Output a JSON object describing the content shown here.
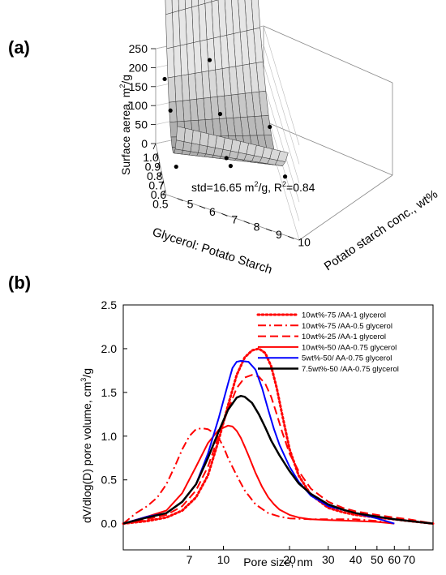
{
  "panel_a": {
    "label": "(a)",
    "annotation_pre": "std=16.65 m",
    "annotation_sup": "2",
    "annotation_post": "/g, R",
    "annotation_sup2": "2",
    "annotation_end": "=0.84",
    "zlabel_pre": "Surface aerea, m",
    "zlabel_sup": "2",
    "zlabel_post": "/g",
    "xlabel": "Glycerol: Potato Starch",
    "ylabel": "Potato starch conc., wt%"
  },
  "panel_b": {
    "label": "(b)",
    "ylabel_pre": "dV/dlog(D) pore volume, cm",
    "ylabel_sup": "3",
    "ylabel_post": "/g",
    "xlabel": "Pore size, nm"
  },
  "chart_data": [
    {
      "type": "surface3d",
      "zlim": [
        0,
        250
      ],
      "z_ticks": [
        "0",
        "50",
        "100",
        "150",
        "200",
        "250"
      ],
      "x_ticks": [
        "1.0",
        "0.9",
        "0.8",
        "0.7",
        "0.6",
        "0.5"
      ],
      "x_range": [
        1.0,
        0.45
      ],
      "y_ticks": [
        "5",
        "6",
        "7",
        "8",
        "9",
        "10"
      ],
      "y_range": [
        4.5,
        10.5
      ],
      "surface_fit": "z = 85 + 30*(6.5 - 10*glycerol)^2 + 6*(conc - 7.5)",
      "points": [
        {
          "glycerol": 1.0,
          "conc": 7.5,
          "z": 190
        },
        {
          "glycerol": 1.0,
          "conc": 5.0,
          "z": 165
        },
        {
          "glycerol": 0.75,
          "conc": 5.0,
          "z": 150
        },
        {
          "glycerol": 0.75,
          "conc": 7.5,
          "z": 150
        },
        {
          "glycerol": 0.75,
          "conc": 10.0,
          "z": 125
        },
        {
          "glycerol": 0.5,
          "conc": 7.5,
          "z": 115
        },
        {
          "glycerol": 0.5,
          "conc": 10.0,
          "z": 130
        },
        {
          "glycerol": 0.5,
          "conc": 5.0,
          "z": 70
        },
        {
          "glycerol": 0.6,
          "conc": 7.5,
          "z": 95
        }
      ]
    },
    {
      "type": "line",
      "xscale": "log",
      "xlim": [
        3.5,
        90
      ],
      "ylim": [
        -0.3,
        2.5
      ],
      "x_ticks": [
        7,
        10,
        20,
        30,
        40,
        50,
        60,
        70
      ],
      "y_ticks": [
        "0.0",
        "0.5",
        "1.0",
        "1.5",
        "2.0",
        "2.5"
      ],
      "y_tick_values": [
        0,
        0.5,
        1.0,
        1.5,
        2.0,
        2.5
      ],
      "legend_position": "top-right",
      "series": [
        {
          "name": "10wt%-75 /AA-1 glycerol",
          "color": "#ff0000",
          "dash": "dotted",
          "width": 3,
          "x": [
            3.5,
            4.5,
            5.5,
            6.5,
            7.5,
            8.5,
            9.5,
            10.5,
            11.5,
            12.5,
            13.5,
            14.5,
            15.5,
            16.5,
            17.5,
            18.5,
            20,
            22,
            25,
            30,
            35,
            40,
            50,
            60,
            70,
            90
          ],
          "y": [
            0.0,
            0.03,
            0.07,
            0.15,
            0.3,
            0.55,
            0.95,
            1.35,
            1.7,
            1.9,
            1.98,
            2.0,
            1.95,
            1.8,
            1.55,
            1.25,
            0.85,
            0.55,
            0.33,
            0.18,
            0.13,
            0.1,
            0.07,
            0.05,
            0.03,
            0.0
          ]
        },
        {
          "name": "10wt%-75 /AA-0.5 glycerol",
          "color": "#ff0000",
          "dash": "dashdot",
          "width": 2,
          "x": [
            3.5,
            4.0,
            4.5,
            5.0,
            5.5,
            6.0,
            6.5,
            7.0,
            7.5,
            8.0,
            8.5,
            9.0,
            9.5,
            10.0,
            10.5,
            11.5,
            12.5,
            14,
            16,
            18,
            20,
            25,
            30,
            40,
            50,
            60
          ],
          "y": [
            0.0,
            0.12,
            0.2,
            0.3,
            0.45,
            0.65,
            0.85,
            1.0,
            1.08,
            1.09,
            1.08,
            1.04,
            0.98,
            0.88,
            0.75,
            0.55,
            0.38,
            0.22,
            0.12,
            0.08,
            0.06,
            0.05,
            0.05,
            0.05,
            0.03,
            0.0
          ]
        },
        {
          "name": "10wt%-25 /AA-1 glycerol",
          "color": "#ff0000",
          "dash": "dashed",
          "width": 2,
          "x": [
            3.5,
            4.5,
            5.5,
            6.5,
            7.5,
            8.5,
            9.5,
            10.5,
            11.5,
            12.5,
            13.5,
            14.5,
            15.5,
            16.5,
            17.5,
            18.5,
            20,
            22,
            25,
            30,
            35,
            40,
            50,
            60,
            70,
            90
          ],
          "y": [
            0.0,
            0.05,
            0.1,
            0.2,
            0.38,
            0.65,
            1.0,
            1.3,
            1.55,
            1.67,
            1.7,
            1.68,
            1.6,
            1.45,
            1.25,
            1.05,
            0.8,
            0.6,
            0.4,
            0.25,
            0.18,
            0.14,
            0.1,
            0.07,
            0.05,
            0.0
          ]
        },
        {
          "name": "10wt%-50 /AA-0.75 glycerol",
          "color": "#ff0000",
          "dash": "solid",
          "width": 2,
          "x": [
            3.5,
            4.5,
            5.5,
            6.5,
            7.5,
            8.5,
            9.5,
            10.5,
            11.0,
            11.5,
            12.0,
            12.5,
            13.0,
            14.0,
            15.0,
            16.0,
            17.0,
            18.0,
            20,
            22,
            25,
            30,
            40,
            50,
            60
          ],
          "y": [
            0.0,
            0.08,
            0.15,
            0.35,
            0.65,
            0.92,
            1.07,
            1.12,
            1.11,
            1.06,
            0.98,
            0.88,
            0.78,
            0.58,
            0.42,
            0.3,
            0.22,
            0.16,
            0.1,
            0.07,
            0.05,
            0.04,
            0.03,
            0.02,
            0.0
          ]
        },
        {
          "name": "5wt%-50/ AA-0.75 glycerol",
          "color": "#0000ff",
          "dash": "solid",
          "width": 2,
          "x": [
            3.5,
            4.5,
            5.5,
            6.5,
            7.5,
            8.5,
            9.5,
            10.5,
            11.0,
            11.5,
            12.0,
            13.0,
            14.0,
            15.0,
            16.0,
            17.0,
            18.0,
            20,
            22,
            25,
            30,
            40,
            50,
            60
          ],
          "y": [
            0.0,
            0.08,
            0.12,
            0.25,
            0.45,
            0.8,
            1.2,
            1.6,
            1.78,
            1.85,
            1.86,
            1.85,
            1.76,
            1.55,
            1.3,
            1.08,
            0.9,
            0.65,
            0.48,
            0.32,
            0.2,
            0.12,
            0.06,
            0.0
          ]
        },
        {
          "name": "7.5wt%-50 /AA-0.75 glycerol",
          "color": "#000000",
          "dash": "solid",
          "width": 2.5,
          "x": [
            3.5,
            4.5,
            5.5,
            6.5,
            7.5,
            8.5,
            9.5,
            10.5,
            11.5,
            12.0,
            12.5,
            13.5,
            14.5,
            15.5,
            16.5,
            18,
            20,
            22,
            25,
            30,
            35,
            40,
            50,
            60,
            70,
            90
          ],
          "y": [
            0.0,
            0.07,
            0.12,
            0.25,
            0.45,
            0.75,
            1.05,
            1.3,
            1.44,
            1.46,
            1.45,
            1.38,
            1.25,
            1.1,
            0.95,
            0.78,
            0.6,
            0.46,
            0.34,
            0.22,
            0.16,
            0.12,
            0.08,
            0.05,
            0.03,
            0.0
          ]
        }
      ]
    }
  ]
}
